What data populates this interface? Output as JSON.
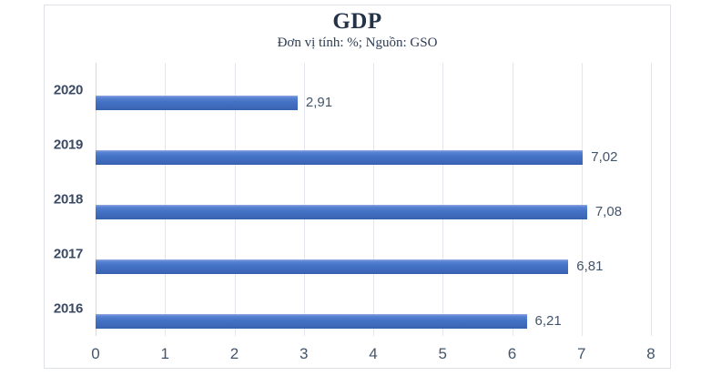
{
  "chart_data": {
    "type": "bar",
    "orientation": "horizontal",
    "title": "GDP",
    "subtitle": "Đơn vị tính: %; Nguồn: GSO",
    "categories": [
      "2020",
      "2019",
      "2018",
      "2017",
      "2016"
    ],
    "values": [
      2.91,
      7.02,
      7.08,
      6.81,
      6.21
    ],
    "value_labels": [
      "2,91",
      "7,02",
      "7,08",
      "6,81",
      "6,21"
    ],
    "x_ticks": [
      "0",
      "1",
      "2",
      "3",
      "4",
      "5",
      "6",
      "7",
      "8"
    ],
    "xlim": [
      0,
      8
    ],
    "xlabel": "",
    "ylabel": "",
    "grid": "vertical",
    "legend": "none",
    "bar_color": "#4472c4",
    "label_color": "#44546a",
    "title_color": "#243248"
  }
}
